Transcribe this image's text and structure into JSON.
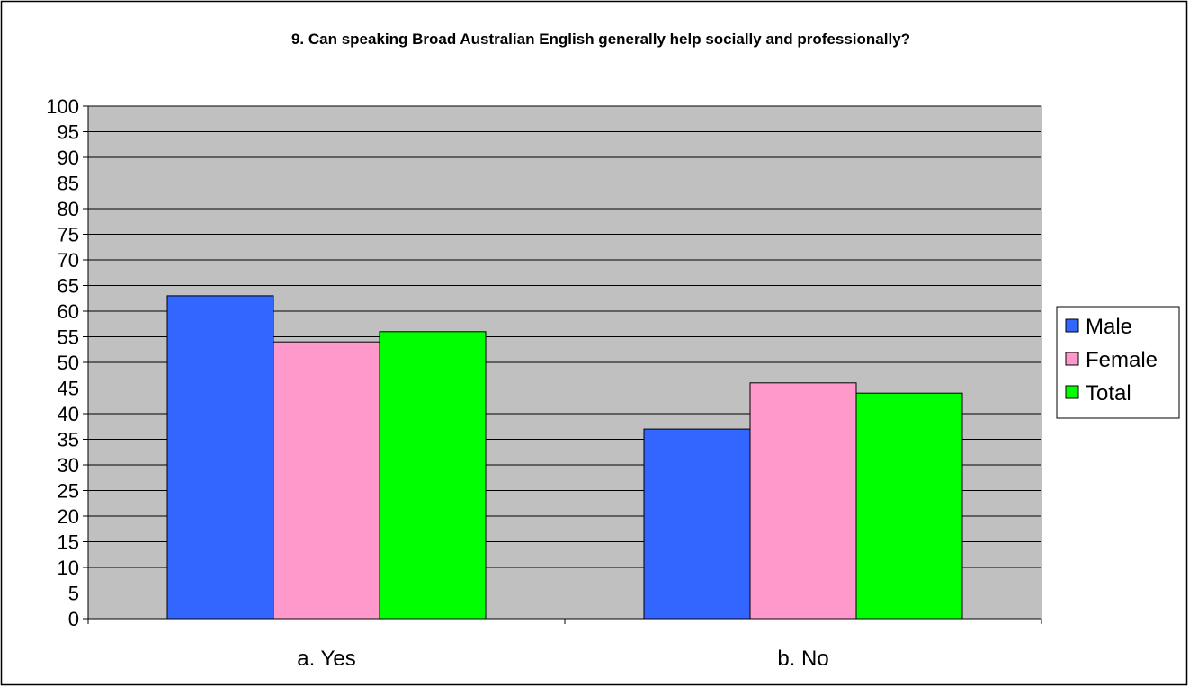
{
  "chart_data": {
    "type": "bar",
    "title": "9. Can speaking Broad Australian English generally help socially and professionally?",
    "categories": [
      "a. Yes",
      "b. No"
    ],
    "series": [
      {
        "name": "Male",
        "color": "#3366ff",
        "values": [
          63,
          37
        ]
      },
      {
        "name": "Female",
        "color": "#ff99cc",
        "values": [
          54,
          46
        ]
      },
      {
        "name": "Total",
        "color": "#00ff00",
        "values": [
          56,
          44
        ]
      }
    ],
    "y_ticks": [
      "0",
      "5",
      "10",
      "15",
      "20",
      "25",
      "30",
      "35",
      "40",
      "45",
      "50",
      "55",
      "60",
      "65",
      "70",
      "75",
      "80",
      "85",
      "90",
      "95",
      "100"
    ],
    "ylim": [
      0,
      100
    ],
    "grid": true,
    "legend_position": "right",
    "plot_background": "#c0c0c0"
  }
}
